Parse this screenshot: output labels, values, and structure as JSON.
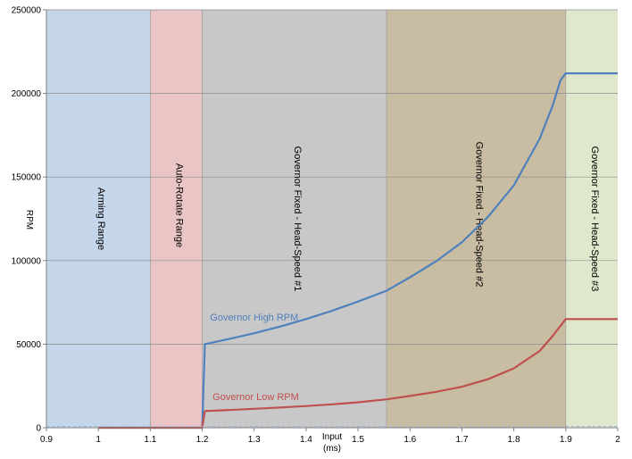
{
  "chart_data": {
    "type": "line",
    "title": "",
    "xlabel_line1": "Input",
    "xlabel_line2": "(ms)",
    "ylabel": "RPM",
    "xlim": [
      0.9,
      2.0
    ],
    "ylim": [
      0,
      250000
    ],
    "x_ticks": [
      "0.9",
      "1",
      "1.1",
      "1.2",
      "1.3",
      "1.4",
      "1.5",
      "1.6",
      "1.7",
      "1.8",
      "1.9",
      "2"
    ],
    "y_ticks": [
      "0",
      "50000",
      "100000",
      "150000",
      "200000",
      "250000"
    ],
    "grid": "horizontal",
    "regions": [
      {
        "label": "Arming Range",
        "x0": 0.9,
        "x1": 1.1,
        "color": "#c5d5ea"
      },
      {
        "label": "Auto-Rotate Range",
        "x0": 1.1,
        "x1": 1.2,
        "color": "#eac5c5"
      },
      {
        "label": "Governor Fixed - Head-Speed #1",
        "x0": 1.2,
        "x1": 1.555,
        "color": "#c8c8c8"
      },
      {
        "label": "Governor Fixed - Head-Speed #2",
        "x0": 1.555,
        "x1": 1.9,
        "color": "#c8bda2"
      },
      {
        "label": "Governor Fixed - Head-Speed #3",
        "x0": 1.9,
        "x1": 2.0,
        "color": "#dfe8cc"
      }
    ],
    "series": [
      {
        "name": "Governor High RPM",
        "color": "#4f81bd",
        "x": [
          1.0,
          1.1,
          1.2,
          1.205,
          1.25,
          1.3,
          1.35,
          1.4,
          1.45,
          1.5,
          1.555,
          1.6,
          1.65,
          1.7,
          1.75,
          1.8,
          1.85,
          1.875,
          1.89,
          1.9,
          2.0
        ],
        "y": [
          0,
          0,
          0,
          50000,
          53000,
          56500,
          60500,
          65000,
          70000,
          75500,
          82000,
          90000,
          99500,
          111000,
          126000,
          145000,
          173000,
          193000,
          208000,
          212000,
          212000
        ]
      },
      {
        "name": "Governor Low RPM",
        "color": "#c0504d",
        "x": [
          1.0,
          1.1,
          1.2,
          1.205,
          1.25,
          1.3,
          1.35,
          1.4,
          1.45,
          1.5,
          1.555,
          1.6,
          1.65,
          1.7,
          1.75,
          1.8,
          1.85,
          1.875,
          1.89,
          1.9,
          2.0
        ],
        "y": [
          0,
          0,
          0,
          10000,
          10600,
          11300,
          12100,
          13000,
          14000,
          15200,
          17000,
          19000,
          21500,
          24500,
          29000,
          35500,
          46000,
          55000,
          61000,
          65000,
          65000
        ]
      }
    ]
  }
}
